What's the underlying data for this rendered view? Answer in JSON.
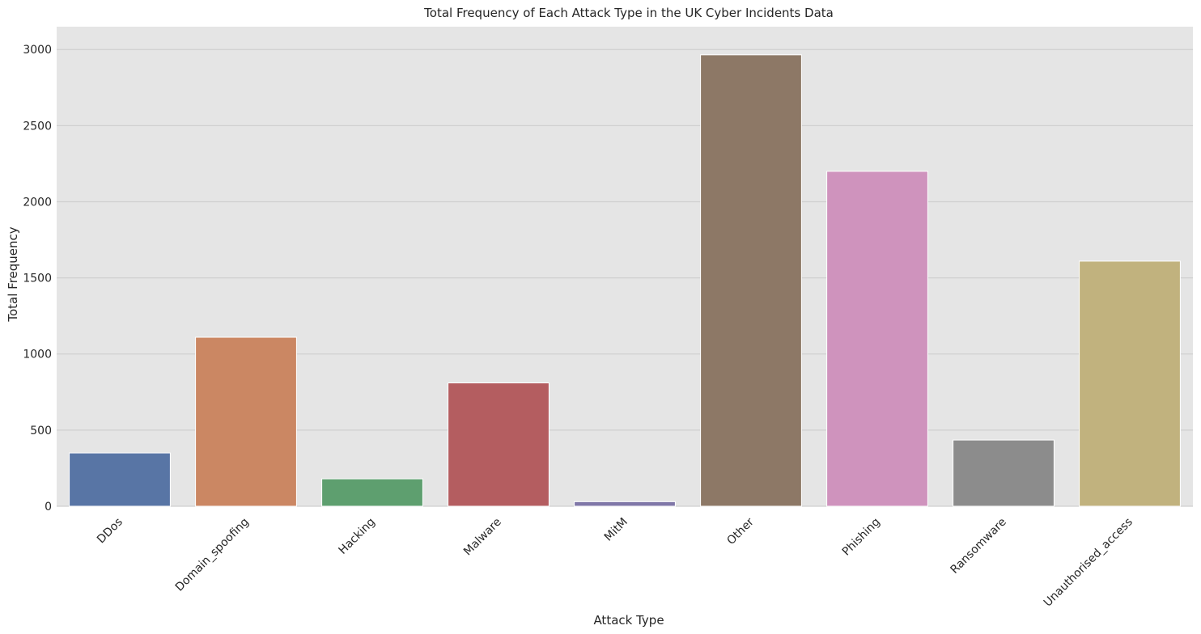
{
  "chart_data": {
    "type": "bar",
    "title": "Total Frequency of Each Attack Type in the UK Cyber Incidents Data",
    "xlabel": "Attack Type",
    "ylabel": "Total Frequency",
    "categories": [
      "DDos",
      "Domain_spoofing",
      "Hacking",
      "Malware",
      "MitM",
      "Other",
      "Phishing",
      "Ransomware",
      "Unauthorised_access"
    ],
    "values": [
      350,
      1110,
      180,
      810,
      30,
      2965,
      2200,
      435,
      1610
    ],
    "colors": [
      "#5875a5",
      "#cb8763",
      "#5e9f6f",
      "#b45d60",
      "#8077a8",
      "#8d7866",
      "#cf93bd",
      "#8c8c8c",
      "#c1b27e"
    ],
    "ylim": [
      0,
      3150
    ],
    "yticks": [
      0,
      500,
      1000,
      1500,
      2000,
      2500,
      3000
    ],
    "grid": true,
    "background": "#e5e5e5",
    "grid_color": "#cfcfcf",
    "legend": "none"
  }
}
